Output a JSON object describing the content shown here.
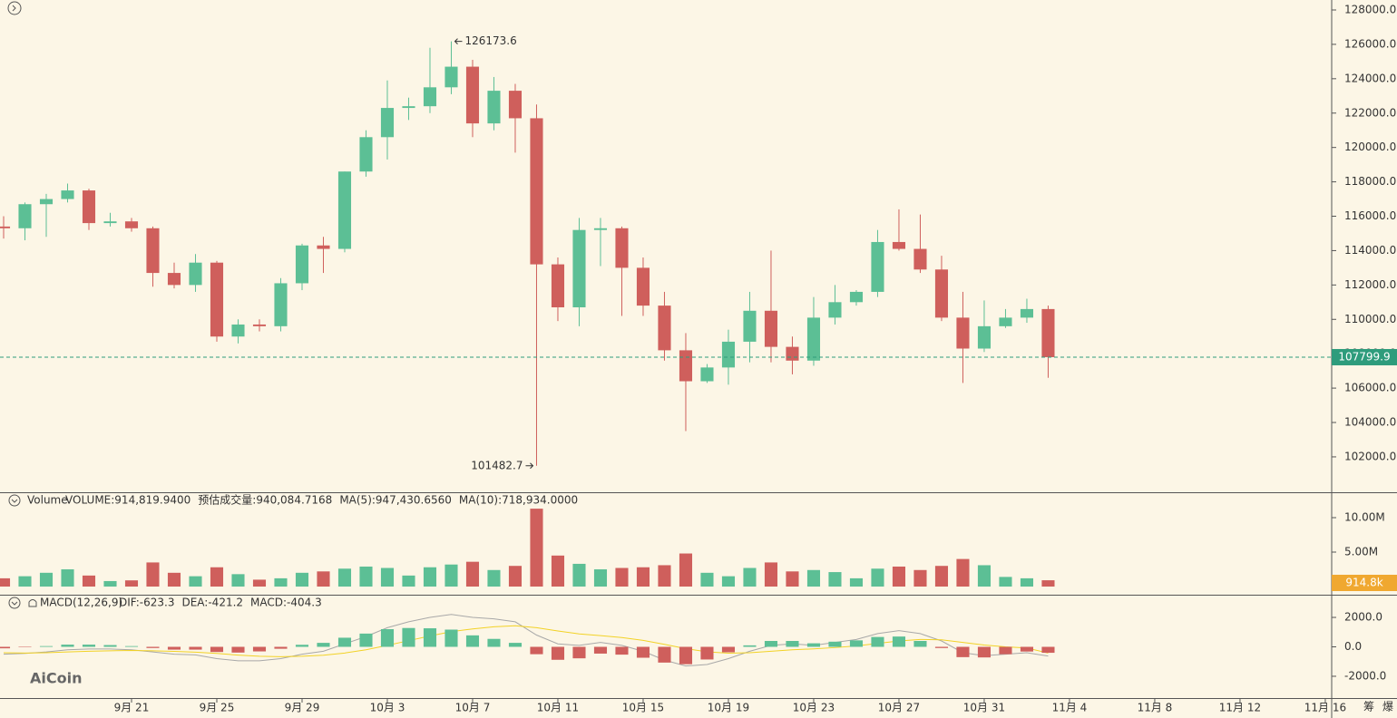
{
  "chart_data": [
    {
      "type": "candlestick",
      "x": [
        "9月 15",
        "9月 16",
        "9月 17",
        "9月 18",
        "9月 19",
        "9月 20",
        "9月 21",
        "9月 22",
        "9月 23",
        "9月 24",
        "9月 25",
        "9月 26",
        "9月 27",
        "9月 28",
        "9月 29",
        "9月 30",
        "10月 1",
        "10月 2",
        "10月 3",
        "10月 4",
        "10月 5",
        "10月 6",
        "10月 7",
        "10月 8",
        "10月 9",
        "10月 10",
        "10月 11",
        "10月 12",
        "10月 13",
        "10月 14",
        "10月 15",
        "10月 16",
        "10月 17",
        "10月 18",
        "10月 19",
        "10月 20",
        "10月 21",
        "10月 22",
        "10月 23",
        "10月 24",
        "10月 25",
        "10月 26",
        "10月 27",
        "10月 28",
        "10月 29",
        "10月 30",
        "10月 31",
        "11月 1",
        "11月 2",
        "11月 3"
      ],
      "open": [
        115400,
        115300,
        116700,
        117000,
        117500,
        115600,
        115700,
        115300,
        112700,
        112000,
        113300,
        109000,
        109700,
        109600,
        112100,
        114300,
        114100,
        118600,
        120600,
        122300,
        122400,
        123500,
        124700,
        121400,
        123300,
        121700,
        113200,
        110700,
        115200,
        115300,
        113000,
        110800,
        108200,
        106400,
        107200,
        108700,
        110500,
        108400,
        107600,
        110100,
        111000,
        111600,
        114500,
        114100,
        112900,
        110100,
        108300,
        109600,
        110100,
        110600
      ],
      "high": [
        116000,
        116800,
        117300,
        117900,
        117600,
        116200,
        115900,
        115400,
        113300,
        113800,
        113400,
        110000,
        110000,
        112400,
        114400,
        114800,
        118600,
        121000,
        123900,
        122900,
        125800,
        126173.6,
        125100,
        124100,
        123700,
        122500,
        113600,
        115900,
        115900,
        115400,
        113600,
        111600,
        109200,
        107400,
        109400,
        111600,
        114000,
        109000,
        111300,
        112000,
        111700,
        115200,
        116400,
        116100,
        113700,
        111600,
        111100,
        110600,
        111200,
        110800
      ],
      "low": [
        114700,
        114600,
        114800,
        116800,
        115200,
        115400,
        115100,
        111900,
        111800,
        111600,
        108700,
        108600,
        109300,
        109300,
        111700,
        112700,
        113900,
        118300,
        119300,
        121600,
        122000,
        123100,
        120600,
        121000,
        119700,
        101482.7,
        109900,
        109600,
        113100,
        110200,
        110200,
        107600,
        103500,
        106300,
        106200,
        107500,
        107500,
        106800,
        107300,
        109700,
        110800,
        111300,
        114000,
        112700,
        109900,
        106300,
        108100,
        109500,
        109800,
        106600
      ],
      "close": [
        115300,
        116700,
        117000,
        117500,
        115600,
        115700,
        115300,
        112700,
        112000,
        113300,
        109000,
        109700,
        109600,
        112100,
        114300,
        114100,
        118600,
        120600,
        122300,
        122400,
        123500,
        124700,
        121400,
        123300,
        121700,
        113200,
        110700,
        115200,
        115300,
        113000,
        110800,
        108200,
        106400,
        107200,
        108700,
        110500,
        108400,
        107600,
        110100,
        111000,
        111600,
        114500,
        114100,
        112900,
        110100,
        108300,
        109600,
        110100,
        110600,
        107799.9
      ],
      "up_color": "#5cbf95",
      "down_color": "#cf5f5c",
      "xlim": [
        -0.17,
        62.3
      ],
      "xticks": [
        {
          "value": 6,
          "label": "9月 21"
        },
        {
          "value": 10,
          "label": "9月 25"
        },
        {
          "value": 14,
          "label": "9月 29"
        },
        {
          "value": 18,
          "label": "10月 3"
        },
        {
          "value": 22,
          "label": "10月 7"
        },
        {
          "value": 26,
          "label": "10月 11"
        },
        {
          "value": 30,
          "label": "10月 15"
        },
        {
          "value": 34,
          "label": "10月 19"
        },
        {
          "value": 38,
          "label": "10月 23"
        },
        {
          "value": 42,
          "label": "10月 27"
        },
        {
          "value": 46,
          "label": "10月 31"
        },
        {
          "value": 50,
          "label": "11月 4"
        },
        {
          "value": 54,
          "label": "11月 8"
        },
        {
          "value": 58,
          "label": "11月 12"
        },
        {
          "value": 62,
          "label": "11月 16"
        }
      ],
      "ylim": [
        99940,
        128580
      ],
      "yticks": [
        {
          "value": 102000,
          "label": "102000.0"
        },
        {
          "value": 104000,
          "label": "104000.0"
        },
        {
          "value": 106000,
          "label": "106000.0"
        },
        {
          "value": 108000,
          "label": "108000.0"
        },
        {
          "value": 110000,
          "label": "110000.0"
        },
        {
          "value": 112000,
          "label": "112000.0"
        },
        {
          "value": 114000,
          "label": "114000.0"
        },
        {
          "value": 116000,
          "label": "116000.0"
        },
        {
          "value": 118000,
          "label": "118000.0"
        },
        {
          "value": 120000,
          "label": "120000.0"
        },
        {
          "value": 122000,
          "label": "122000.0"
        },
        {
          "value": 124000,
          "label": "124000.0"
        },
        {
          "value": 126000,
          "label": "126000.0"
        },
        {
          "value": 128000,
          "label": "128000.0"
        }
      ],
      "tag_color": "#2e9c7c",
      "corner_labels": [
        "筹",
        "爆"
      ],
      "watermark": "AiCoin"
    },
    {
      "type": "bar",
      "title": "Volume",
      "legend": [
        {
          "text": "VOLUME:914,819.9400",
          "color": "#555555"
        },
        {
          "text": "预估成交量:940,084.7168",
          "color": "#555555"
        },
        {
          "text": "MA(5):947,430.6560",
          "color": "#c8c8c8"
        },
        {
          "text": "MA(10):718,934.0000",
          "color": "#f2d226"
        }
      ],
      "values": [
        1200000,
        1500000,
        2000000,
        2500000,
        1600000,
        800000,
        900000,
        3500000,
        2000000,
        1500000,
        2800000,
        1800000,
        1000000,
        1200000,
        2000000,
        2200000,
        2600000,
        2900000,
        2700000,
        1600000,
        2800000,
        3200000,
        3600000,
        2400000,
        3000000,
        11300000,
        4500000,
        3300000,
        2500000,
        2700000,
        2800000,
        3100000,
        4800000,
        2000000,
        1500000,
        2700000,
        3500000,
        2200000,
        2400000,
        2100000,
        1200000,
        2600000,
        2900000,
        2400000,
        3000000,
        4000000,
        3100000,
        1400000,
        1200000,
        914819.94
      ],
      "value_labels": {
        "49": "914.8k"
      },
      "ylim": [
        -1180000,
        13550000
      ],
      "yticks": [
        {
          "value": 5000000,
          "label": "5.00M"
        },
        {
          "value": 10000000,
          "label": "10.00M"
        }
      ],
      "tag_color": "#f0a830"
    },
    {
      "type": "macd",
      "title": "MACD(12,26,9)",
      "legend": [
        {
          "text": "DIF:-623.3",
          "color": "#b0b0b0"
        },
        {
          "text": "DEA:-421.2",
          "color": "#f2d226"
        },
        {
          "text": "MACD:-404.3",
          "color": "#cf5f5c"
        }
      ],
      "series": [
        {
          "name": "DIF",
          "color": "#a8a8a8",
          "values": [
            -500,
            -450,
            -350,
            -200,
            -150,
            -150,
            -200,
            -350,
            -500,
            -550,
            -800,
            -950,
            -950,
            -800,
            -500,
            -300,
            200,
            700,
            1300,
            1700,
            2000,
            2200,
            2000,
            1900,
            1700,
            800,
            200,
            100,
            300,
            100,
            -300,
            -900,
            -1300,
            -1200,
            -800,
            -300,
            100,
            200,
            100,
            300,
            500,
            900,
            1100,
            900,
            400,
            -400,
            -600,
            -500,
            -400,
            -623.3
          ]
        },
        {
          "name": "DEA",
          "color": "#f2d226",
          "values": [
            -400,
            -420,
            -400,
            -350,
            -300,
            -270,
            -250,
            -270,
            -310,
            -360,
            -450,
            -560,
            -640,
            -670,
            -640,
            -570,
            -420,
            -200,
            100,
            420,
            740,
            1030,
            1220,
            1360,
            1430,
            1300,
            1080,
            880,
            760,
            630,
            440,
            170,
            -120,
            -340,
            -430,
            -400,
            -300,
            -200,
            -140,
            -50,
            60,
            230,
            400,
            500,
            480,
            300,
            120,
            0,
            -80,
            -421.2
          ]
        },
        {
          "name": "MACD",
          "values": [
            -100,
            -30,
            50,
            150,
            150,
            120,
            50,
            -80,
            -190,
            -190,
            -350,
            -390,
            -310,
            -130,
            140,
            270,
            620,
            900,
            1200,
            1280,
            1260,
            1170,
            780,
            540,
            270,
            -500,
            -880,
            -780,
            -460,
            -530,
            -740,
            -1070,
            -1180,
            -860,
            -370,
            100,
            400,
            400,
            240,
            350,
            440,
            670,
            700,
            400,
            -80,
            -700,
            -720,
            -500,
            -320,
            -404.3
          ]
        }
      ],
      "ylim": [
        -3480,
        3480
      ],
      "yticks": [
        {
          "value": -2000,
          "label": "-2000.0"
        },
        {
          "value": 0,
          "label": "0.0"
        },
        {
          "value": 2000,
          "label": "2000.0"
        }
      ]
    }
  ]
}
